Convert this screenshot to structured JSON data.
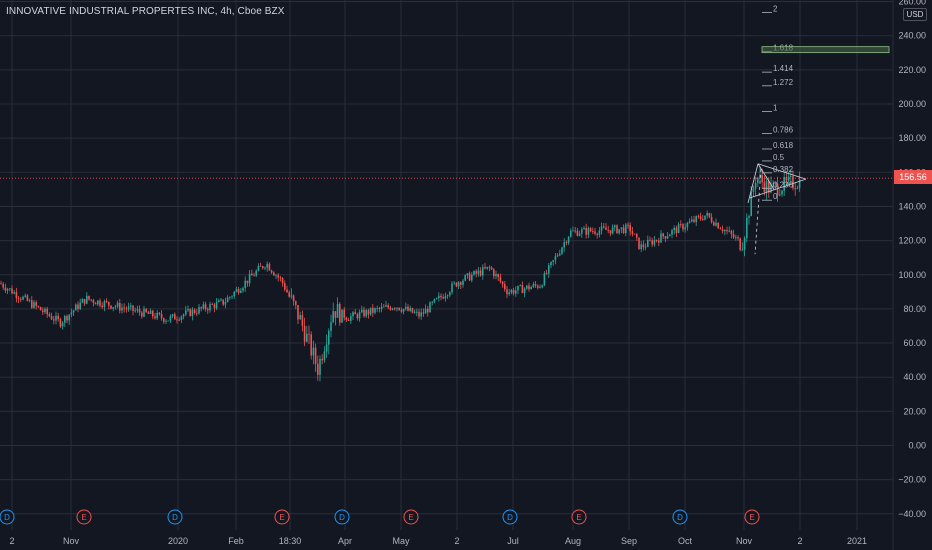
{
  "chart_title": "INNOVATIVE INDUSTRIAL PROPERTES INC, 4h, Cboe BZX",
  "currency_label": "USD",
  "last_price_label": "156.56",
  "colors": {
    "background": "#131722",
    "grid": "#2a2e39",
    "up": "#26a69a",
    "down": "#ef5350",
    "price_line": "#ef5350",
    "fib": "#b2b5be",
    "fib_band": "#4a6b48",
    "pattern": "#d1d4dc",
    "dividend": "#2196f3",
    "earnings": "#ef5350",
    "text": "#b2b5be"
  },
  "chart_data": {
    "type": "candlestick",
    "ylim": [
      -50,
      260
    ],
    "yticks": [
      260,
      240,
      220,
      200,
      180,
      160,
      140,
      120,
      100,
      80,
      60,
      40,
      20,
      0,
      -20,
      -40
    ],
    "ytick_labels": [
      "260.00",
      "240.00",
      "220.00",
      "200.00",
      "180.00",
      "160.00",
      "140.00",
      "120.00",
      "100.00",
      "80.00",
      "60.00",
      "40.00",
      "20.00",
      "0.00",
      "−20.00",
      "−40.00"
    ],
    "xlabels": [
      "2",
      "Nov",
      "2020",
      "Feb",
      "18:30",
      "Apr",
      "May",
      "2",
      "Jul",
      "Aug",
      "Sep",
      "Oct",
      "Nov",
      "2",
      "2021"
    ],
    "last_price": 156.56,
    "price_path": [
      [
        "2",
        95
      ],
      [
        "Nov",
        72
      ],
      [
        "Nov",
        86
      ],
      [
        "2020",
        74
      ],
      [
        "Feb",
        84
      ],
      [
        "Feb",
        107
      ],
      [
        "18:30",
        96
      ],
      [
        "18:30",
        74
      ],
      [
        "18:30",
        45
      ],
      [
        "Apr",
        80
      ],
      [
        "Apr",
        75
      ],
      [
        "May",
        82
      ],
      [
        "May",
        76
      ],
      [
        "2",
        96
      ],
      [
        "2",
        104
      ],
      [
        "Jul",
        90
      ],
      [
        "Jul",
        94
      ],
      [
        "Aug",
        125
      ],
      [
        "Sep",
        127
      ],
      [
        "Sep",
        116
      ],
      [
        "Oct",
        135
      ],
      [
        "Oct",
        118
      ],
      [
        "Nov",
        158
      ],
      [
        "Nov",
        150
      ],
      [
        "2",
        155
      ]
    ],
    "fibonacci_levels": [
      {
        "label": "2",
        "value": 256
      },
      {
        "label": "1.618",
        "value": 233
      },
      {
        "label": "1.414",
        "value": 221
      },
      {
        "label": "1.272",
        "value": 213
      },
      {
        "label": "1",
        "value": 198
      },
      {
        "label": "0.786",
        "value": 185
      },
      {
        "label": "0.618",
        "value": 176
      },
      {
        "label": "0.5",
        "value": 169
      },
      {
        "label": "0.382",
        "value": 162
      },
      {
        "label": "0.236",
        "value": 153
      },
      {
        "label": "0",
        "value": 146
      }
    ],
    "events": [
      "D",
      "E",
      "D",
      "E",
      "D",
      "E",
      "D",
      "E",
      "D",
      "E"
    ]
  }
}
